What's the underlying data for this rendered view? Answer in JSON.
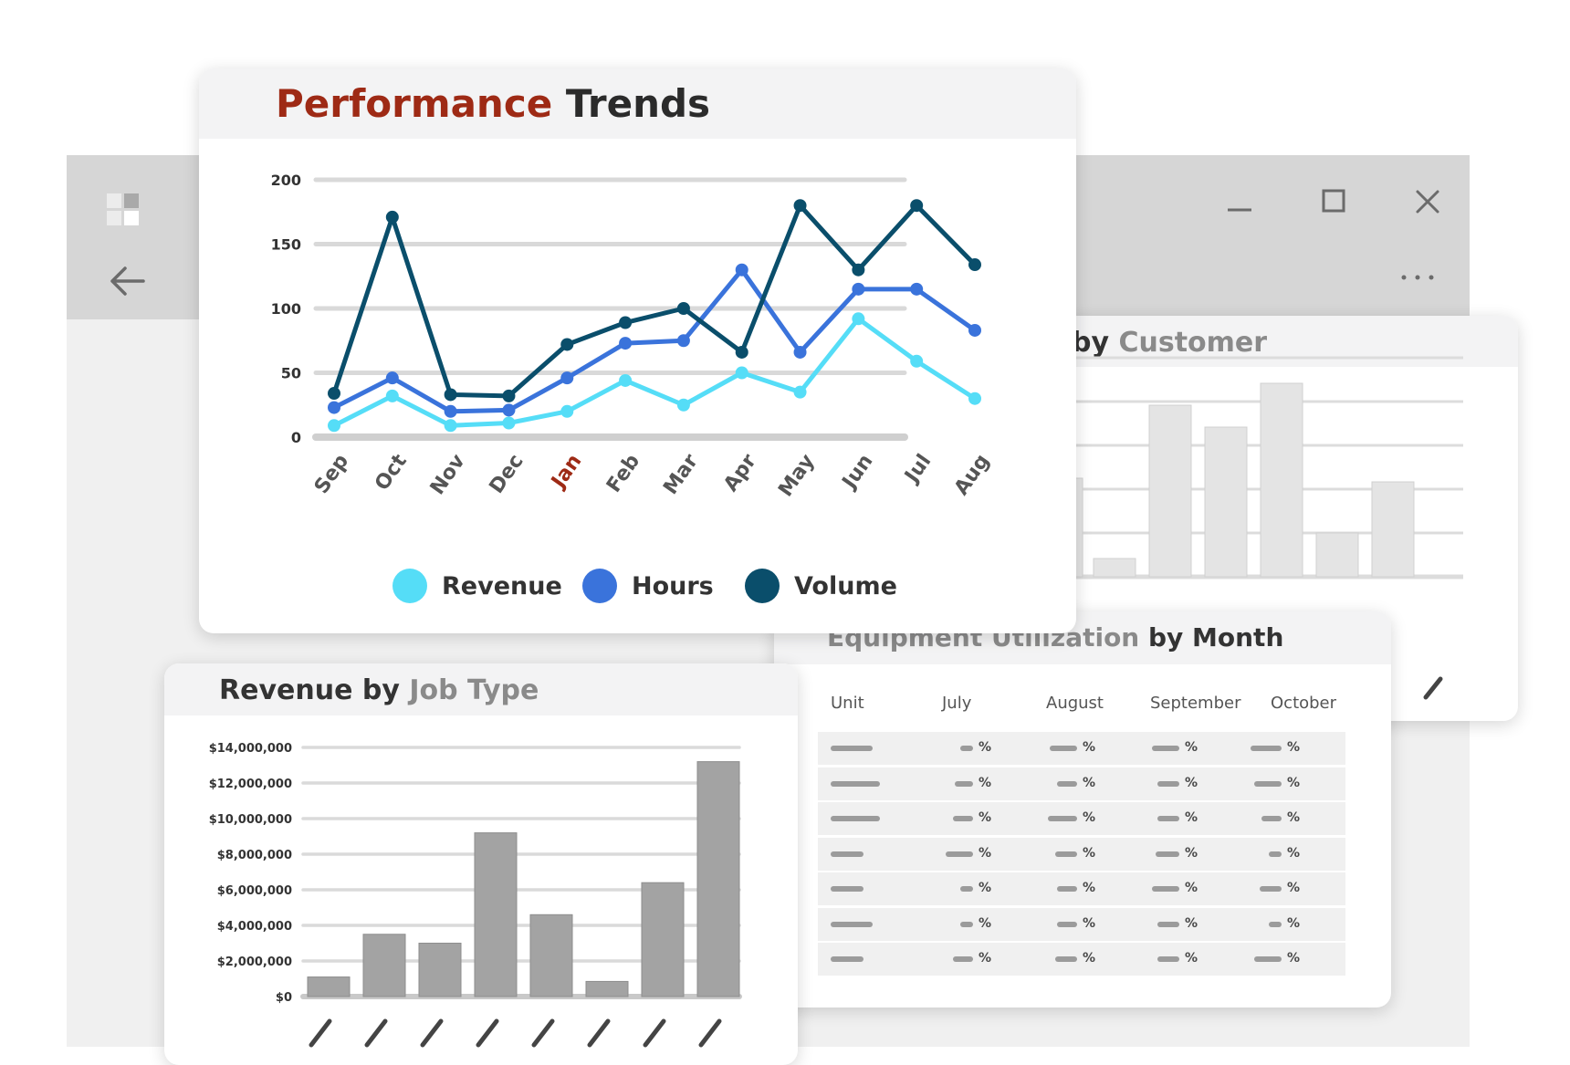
{
  "window": {
    "apps_icon": "apps-grid-icon",
    "back_icon": "arrow-left-icon",
    "minimize_icon": "minimize-icon",
    "maximize_icon": "maximize-icon",
    "close_icon": "close-icon",
    "more_icon": "more-horizontal-icon"
  },
  "colors": {
    "accent_red": "#9e2a15",
    "revenue": "#55ddf7",
    "hours": "#3a73db",
    "volume": "#0a4e6b",
    "bar_gray": "#a3a3a3",
    "bar_light": "#e4e4e4"
  },
  "performance": {
    "title_part1": "Performance",
    "title_part2": "Trends"
  },
  "customer": {
    "title_part1": "by",
    "title_part2": "Customer"
  },
  "equipment": {
    "title_part1": "Equipment Utilization",
    "title_part2": "by Month",
    "columns": [
      "Unit",
      "July",
      "August",
      "September",
      "October"
    ],
    "percent_symbol": "%"
  },
  "jobtype": {
    "title_part1": "Revenue by",
    "title_part2": "Job Type"
  },
  "chart_data": [
    {
      "type": "line",
      "title": "Performance Trends",
      "categories": [
        "Sep",
        "Oct",
        "Nov",
        "Dec",
        "Jan",
        "Feb",
        "Mar",
        "Apr",
        "May",
        "Jun",
        "Jul",
        "Aug"
      ],
      "highlight_category": "Jan",
      "ylim": [
        0,
        200
      ],
      "yticks": [
        0,
        50,
        100,
        150,
        200
      ],
      "grid": true,
      "legend": "bottom",
      "series": [
        {
          "name": "Revenue",
          "color": "#55ddf7",
          "values": [
            9,
            32,
            9,
            11,
            20,
            44,
            25,
            50,
            35,
            92,
            59,
            30
          ]
        },
        {
          "name": "Hours",
          "color": "#3a73db",
          "values": [
            23,
            46,
            20,
            21,
            46,
            73,
            75,
            130,
            66,
            115,
            115,
            83
          ]
        },
        {
          "name": "Volume",
          "color": "#0a4e6b",
          "values": [
            34,
            171,
            33,
            32,
            72,
            89,
            100,
            66,
            180,
            130,
            180,
            134
          ]
        }
      ]
    },
    {
      "type": "bar",
      "title": "Revenue by Job Type",
      "categories": [
        "",
        "",
        "",
        "",
        "",
        "",
        "",
        ""
      ],
      "values": [
        1100000,
        3500000,
        3000000,
        9200000,
        4600000,
        850000,
        6400000,
        13200000
      ],
      "ylim": [
        0,
        14000000
      ],
      "ytick_labels": [
        "$0",
        "$2,000,000",
        "$4,000,000",
        "$6,000,000",
        "$8,000,000",
        "$10,000,000",
        "$12,000,000",
        "$14,000,000"
      ],
      "grid": true
    },
    {
      "type": "bar",
      "title": "by Customer",
      "categories": [
        "",
        "",
        "",
        "",
        "",
        "",
        ""
      ],
      "values": [
        27,
        5,
        47,
        41,
        53,
        12,
        26
      ],
      "ylim": [
        0,
        60
      ],
      "grid": true
    }
  ]
}
